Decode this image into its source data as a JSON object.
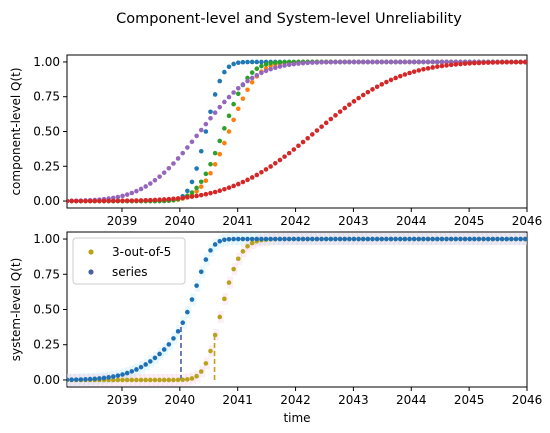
{
  "figure": {
    "title": "Component-level and System-level Unreliability"
  },
  "colors": {
    "blue": "#1f77b4",
    "orange": "#ff7f0e",
    "green": "#2ca02c",
    "red": "#d62728",
    "purple": "#9467bd",
    "olive": "#bcbd22",
    "steel": "#4c5ea6",
    "series_blue": "#1f6fb4",
    "kofn_gold": "#b8a21c",
    "dash_blue": "#4c5ea6",
    "dash_gold": "#c99a1c"
  },
  "chart_data": [
    {
      "type": "scatter",
      "ylabel": "component-level Q(t)",
      "xlabel": "",
      "xlim": [
        2038.05,
        2046.0
      ],
      "ylim": [
        -0.05,
        1.05
      ],
      "xticks": [
        "2039",
        "2040",
        "2041",
        "2042",
        "2043",
        "2044",
        "2045",
        "2046"
      ],
      "yticks": [
        "0.00",
        "0.25",
        "0.50",
        "0.75",
        "1.00"
      ],
      "series": [
        {
          "color": "blue",
          "mu": 2040.45,
          "sigma": 0.22,
          "step": 0.08
        },
        {
          "color": "orange",
          "mu": 2040.85,
          "sigma": 0.38,
          "step": 0.08
        },
        {
          "color": "green",
          "mu": 2040.75,
          "sigma": 0.35,
          "step": 0.08
        },
        {
          "color": "purple",
          "mu": 2040.35,
          "sigma": 0.75,
          "step": 0.08
        },
        {
          "color": "red",
          "mu": 2042.35,
          "sigma": 1.15,
          "step": 0.08
        }
      ]
    },
    {
      "type": "scatter",
      "ylabel": "system-level Q(t)",
      "xlabel": "time",
      "xlim": [
        2038.05,
        2046.0
      ],
      "ylim": [
        -0.05,
        1.05
      ],
      "xticks": [
        "2039",
        "2040",
        "2041",
        "2042",
        "2043",
        "2044",
        "2045",
        "2046"
      ],
      "yticks": [
        "0.00",
        "0.25",
        "0.50",
        "0.75",
        "1.00"
      ],
      "legend": {
        "placement": "upper-left",
        "entries": [
          {
            "label": "3-out-of-5",
            "color": "kofn_gold"
          },
          {
            "label": "series",
            "color": "steel"
          }
        ]
      },
      "series": [
        {
          "name": "3-out-of-5",
          "color": "kofn_gold",
          "jump_at": 2040.6
        },
        {
          "name": "series",
          "color": "series_blue",
          "jump_at": 2040.02
        }
      ]
    }
  ]
}
